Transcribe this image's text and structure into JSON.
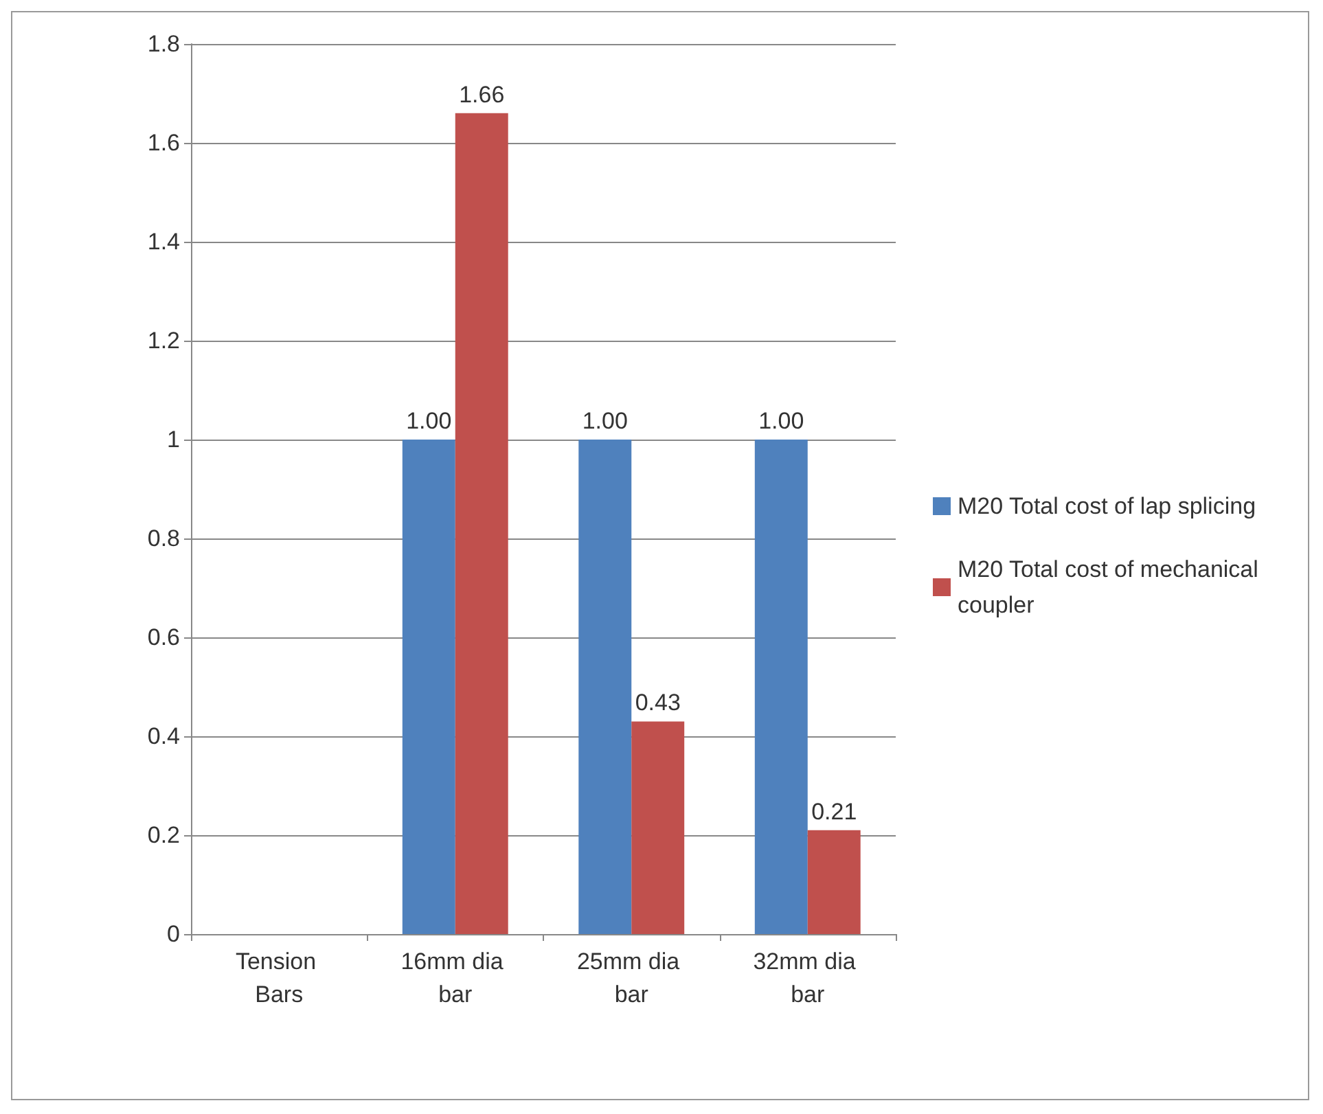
{
  "chart_data": {
    "type": "bar",
    "categories": [
      "Tension Bars",
      "16mm dia bar",
      "25mm dia bar",
      "32mm dia bar"
    ],
    "series": [
      {
        "name": "M20 Total cost of lap splicing",
        "color": "#4f81bd",
        "values": [
          null,
          1,
          1,
          1
        ],
        "value_labels": [
          null,
          "1.00",
          "1.00",
          "1.00"
        ]
      },
      {
        "name": "M20 Total cost of mechanical coupler",
        "color": "#c0504d",
        "values": [
          null,
          1.66,
          0.43,
          0.21
        ],
        "value_labels": [
          null,
          "1.66",
          "0.43",
          "0.21"
        ]
      }
    ],
    "ylim": [
      0,
      1.8
    ],
    "yticks": [
      0,
      0.2,
      0.4,
      0.6,
      0.8,
      1,
      1.2,
      1.4,
      1.6,
      1.8
    ],
    "grid": "y",
    "legend": "right"
  }
}
